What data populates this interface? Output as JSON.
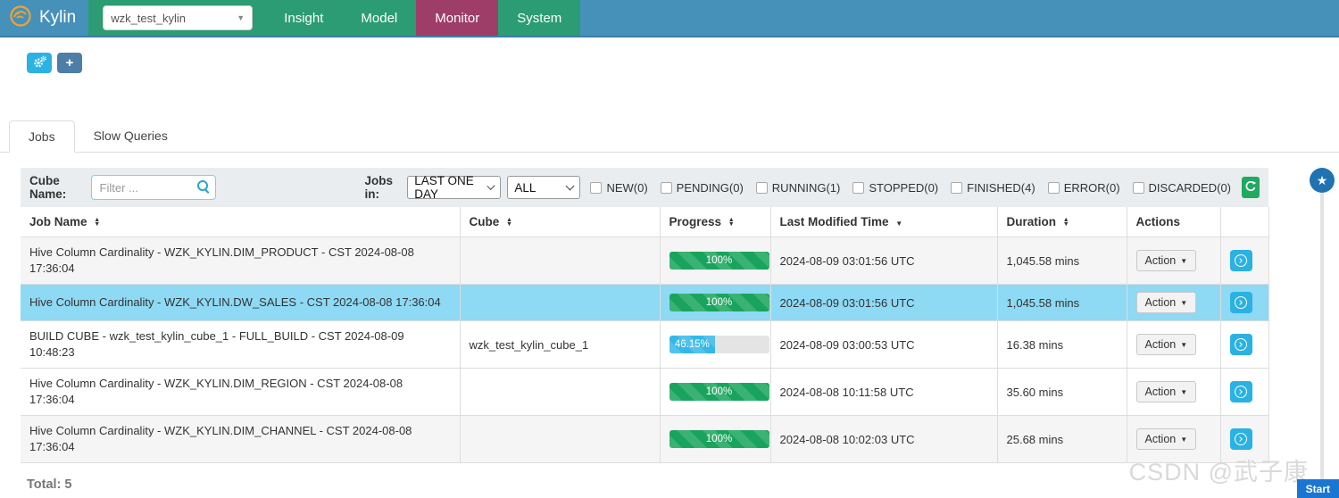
{
  "navbar": {
    "brand": "Kylin",
    "project_select": {
      "value": "wzk_test_kylin"
    },
    "menu": [
      {
        "label": "Insight",
        "active": false
      },
      {
        "label": "Model",
        "active": false
      },
      {
        "label": "Monitor",
        "active": true
      },
      {
        "label": "System",
        "active": false
      }
    ]
  },
  "toolbar": {
    "buttons": [
      {
        "icon": "gears-icon",
        "label": ""
      },
      {
        "icon": "plus-icon",
        "label": "+"
      }
    ]
  },
  "tabs": [
    {
      "label": "Jobs",
      "active": true
    },
    {
      "label": "Slow Queries",
      "active": false
    }
  ],
  "filters": {
    "cube_name_label": "Cube Name:",
    "filter_placeholder": "Filter ...",
    "jobs_in_label": "Jobs in:",
    "time_range_value": "LAST ONE DAY",
    "status_value": "ALL",
    "status_checkboxes": [
      {
        "label": "NEW(0)",
        "checked": false
      },
      {
        "label": "PENDING(0)",
        "checked": false
      },
      {
        "label": "RUNNING(1)",
        "checked": false
      },
      {
        "label": "STOPPED(0)",
        "checked": false
      },
      {
        "label": "FINISHED(4)",
        "checked": false
      },
      {
        "label": "ERROR(0)",
        "checked": false
      },
      {
        "label": "DISCARDED(0)",
        "checked": false
      }
    ]
  },
  "table": {
    "columns": [
      {
        "label": "Job Name",
        "sort": "both"
      },
      {
        "label": "Cube",
        "sort": "both"
      },
      {
        "label": "Progress",
        "sort": "both"
      },
      {
        "label": "Last Modified Time",
        "sort": "desc"
      },
      {
        "label": "Duration",
        "sort": "both"
      },
      {
        "label": "Actions",
        "sort": "none"
      },
      {
        "label": "",
        "sort": "none"
      }
    ],
    "rows": [
      {
        "job_name": "Hive Column Cardinality - WZK_KYLIN.DIM_PRODUCT - CST 2024-08-08 17:36:04",
        "cube": "",
        "progress": {
          "label": "100%",
          "pct": 100,
          "state": "success"
        },
        "last_modified_time": "2024-08-09 03:01:56 UTC",
        "duration": "1,045.58 mins",
        "action_label": "Action",
        "highlighted": false
      },
      {
        "job_name": "Hive Column Cardinality - WZK_KYLIN.DW_SALES - CST 2024-08-08 17:36:04",
        "cube": "",
        "progress": {
          "label": "100%",
          "pct": 100,
          "state": "success"
        },
        "last_modified_time": "2024-08-09 03:01:56 UTC",
        "duration": "1,045.58 mins",
        "action_label": "Action",
        "highlighted": true
      },
      {
        "job_name": "BUILD CUBE - wzk_test_kylin_cube_1 - FULL_BUILD - CST 2024-08-09 10:48:23",
        "cube": "wzk_test_kylin_cube_1",
        "progress": {
          "label": "46.15%",
          "pct": 46.15,
          "state": "info"
        },
        "last_modified_time": "2024-08-09 03:00:53 UTC",
        "duration": "16.38 mins",
        "action_label": "Action",
        "highlighted": false
      },
      {
        "job_name": "Hive Column Cardinality - WZK_KYLIN.DIM_REGION - CST 2024-08-08 17:36:04",
        "cube": "",
        "progress": {
          "label": "100%",
          "pct": 100,
          "state": "success"
        },
        "last_modified_time": "2024-08-08 10:11:58 UTC",
        "duration": "35.60 mins",
        "action_label": "Action",
        "highlighted": false
      },
      {
        "job_name": "Hive Column Cardinality - WZK_KYLIN.DIM_CHANNEL - CST 2024-08-08 17:36:04",
        "cube": "",
        "progress": {
          "label": "100%",
          "pct": 100,
          "state": "success"
        },
        "last_modified_time": "2024-08-08 10:02:03 UTC",
        "duration": "25.68 mins",
        "action_label": "Action",
        "highlighted": false
      }
    ]
  },
  "footer": {
    "total_label": "Total: 5"
  },
  "overlay": {
    "watermark": "CSDN @武子康",
    "start_button": "Start"
  },
  "colors": {
    "navbar_blue": "#4691b9",
    "navbar_green": "#2b9c73",
    "active_menu_purple": "#9e3d68",
    "logo_orange": "#f0a230",
    "cyan_button": "#29b2e2",
    "steel_button": "#4d7ea8",
    "refresh_green": "#1faa5f",
    "progress_green": "#18a45c",
    "progress_cyan": "#35b8e8",
    "highlight_row": "#8ed9f4",
    "filterbar_bg": "#e9edf0",
    "start_button_blue": "#1976d2"
  }
}
